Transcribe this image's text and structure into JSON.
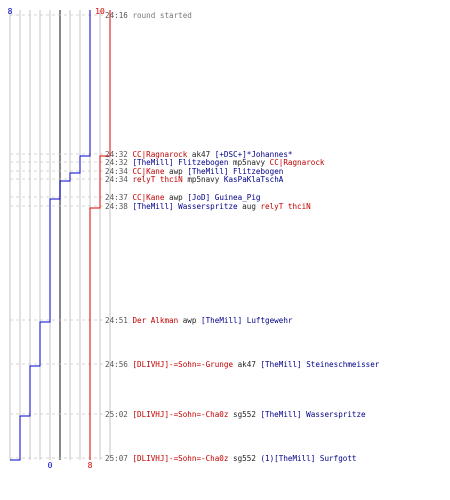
{
  "scores": {
    "blue_start": "8",
    "red_start": "10",
    "blue_end": "0",
    "red_end": "8"
  },
  "chart": {
    "lane_count": 10,
    "max_value": 10,
    "blue_color": "#0000cc",
    "red_color": "#dd0000",
    "grid_color": "#b8b8b8",
    "dash_color": "#c8c8c8",
    "mid_color": "#555555",
    "blue_steps": [
      8,
      7,
      6,
      5,
      4,
      3,
      2,
      1,
      0
    ],
    "red_steps": [
      10,
      9,
      8
    ]
  },
  "events": [
    {
      "time": "24:16",
      "message": "round started"
    },
    {
      "time": "24:32",
      "killer": "CC|Ragnarock",
      "weapon": "ak47",
      "victim": "[+DSC+]*Johannes*",
      "killer_color": "red",
      "victim_color": "blue"
    },
    {
      "time": "24:32",
      "killer": "[TheMill] Flitzebogen",
      "weapon": "mp5navy",
      "victim": "CC|Ragnarock",
      "killer_color": "blue",
      "victim_color": "red"
    },
    {
      "time": "24:34",
      "killer": "CC|Kane",
      "weapon": "awp",
      "victim": "[TheMill] Flitzebogen",
      "killer_color": "red",
      "victim_color": "blue"
    },
    {
      "time": "24:34",
      "killer": "relyT thciN",
      "weapon": "mp5navy",
      "victim": "KasPaKlaTschA",
      "killer_color": "red",
      "victim_color": "blue"
    },
    {
      "time": "24:37",
      "killer": "CC|Kane",
      "weapon": "awp",
      "victim": "[JoD] Guinea_Pig",
      "killer_color": "red",
      "victim_color": "blue"
    },
    {
      "time": "24:38",
      "killer": "[TheMill] Wasserspritze",
      "weapon": "aug",
      "victim": "relyT thciN",
      "killer_color": "blue",
      "victim_color": "red"
    },
    {
      "time": "24:51",
      "killer": "Der Alkman",
      "weapon": "awp",
      "victim": "[TheMill] Luftgewehr",
      "killer_color": "red",
      "victim_color": "blue"
    },
    {
      "time": "24:56",
      "killer": "[DLIVHJ]-=Sohn=-Grunge",
      "weapon": "ak47",
      "victim": "[TheMill] Steineschmeisser",
      "killer_color": "red",
      "victim_color": "blue"
    },
    {
      "time": "25:02",
      "killer": "[DLIVHJ]-=Sohn=-Cha0z",
      "weapon": "sg552",
      "victim": "[TheMill] Wasserspritze",
      "killer_color": "red",
      "victim_color": "blue"
    },
    {
      "time": "25:07",
      "killer": "[DLIVHJ]-=Sohn=-Cha0z",
      "weapon": "sg552",
      "victim": "(1)[TheMill] Surfgott",
      "killer_color": "red",
      "victim_color": "blue"
    }
  ]
}
